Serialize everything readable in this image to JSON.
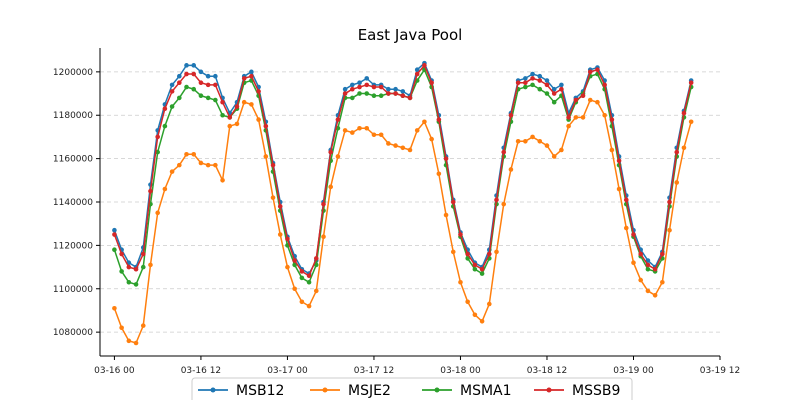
{
  "chart_data": {
    "type": "line",
    "title": "East Java Pool",
    "xlabel": "",
    "ylabel": "",
    "x_start": "03-16 00",
    "x_step_hours": 1,
    "x_ticks": [
      "03-16 00",
      "03-16 12",
      "03-17 00",
      "03-17 12",
      "03-18 00",
      "03-18 12",
      "03-19 00",
      "03-19 12"
    ],
    "xlim": [
      "03-15 22",
      "03-19 12"
    ],
    "ylim": [
      1069000,
      1211000
    ],
    "y_ticks": [
      1080000,
      1100000,
      1120000,
      1140000,
      1160000,
      1180000,
      1200000
    ],
    "grid": "y-dashed",
    "legend_position": "bottom-center",
    "series": [
      {
        "name": "MSB12",
        "color": "#1f77b4",
        "values": [
          1127000,
          1118000,
          1112000,
          1110000,
          1119000,
          1148000,
          1173000,
          1185000,
          1194000,
          1198000,
          1203000,
          1203000,
          1200000,
          1198000,
          1198000,
          1188000,
          1181000,
          1186000,
          1198000,
          1200000,
          1193000,
          1177000,
          1158000,
          1140000,
          1124000,
          1115000,
          1109000,
          1107000,
          1113000,
          1140000,
          1164000,
          1180000,
          1192000,
          1194000,
          1195000,
          1197000,
          1194000,
          1194000,
          1192000,
          1192000,
          1191000,
          1189000,
          1201000,
          1204000,
          1196000,
          1180000,
          1161000,
          1141000,
          1126000,
          1118000,
          1112000,
          1110000,
          1118000,
          1143000,
          1165000,
          1181000,
          1196000,
          1197000,
          1199000,
          1198000,
          1196000,
          1192000,
          1194000,
          1181000,
          1188000,
          1191000,
          1201000,
          1202000,
          1196000,
          1180000,
          1161000,
          1143000,
          1127000,
          1118000,
          1113000,
          1110000,
          1117000,
          1142000,
          1165000,
          1182000,
          1196000
        ]
      },
      {
        "name": "MSJE2",
        "color": "#ff7f0e",
        "values": [
          1091000,
          1082000,
          1076000,
          1075000,
          1083000,
          1111000,
          1135000,
          1146000,
          1154000,
          1157000,
          1162000,
          1162000,
          1158000,
          1157000,
          1157000,
          1150000,
          1175000,
          1176000,
          1186000,
          1185000,
          1178000,
          1161000,
          1142000,
          1125000,
          1110000,
          1100000,
          1094000,
          1092000,
          1099000,
          1124000,
          1147000,
          1161000,
          1173000,
          1172000,
          1174000,
          1174000,
          1171000,
          1171000,
          1167000,
          1166000,
          1165000,
          1164000,
          1173000,
          1177000,
          1169000,
          1153000,
          1134000,
          1117000,
          1103000,
          1094000,
          1088000,
          1085000,
          1093000,
          1117000,
          1139000,
          1155000,
          1168000,
          1168000,
          1170000,
          1168000,
          1166000,
          1161000,
          1164000,
          1175000,
          1179000,
          1179000,
          1187000,
          1186000,
          1180000,
          1164000,
          1146000,
          1128000,
          1112000,
          1104000,
          1099000,
          1097000,
          1103000,
          1127000,
          1149000,
          1165000,
          1177000
        ]
      },
      {
        "name": "MSMA1",
        "color": "#2ca02c",
        "values": [
          1118000,
          1108000,
          1103000,
          1102000,
          1110000,
          1139000,
          1163000,
          1175000,
          1184000,
          1188000,
          1193000,
          1192000,
          1189000,
          1188000,
          1187000,
          1180000,
          1179000,
          1183000,
          1195000,
          1196000,
          1189000,
          1173000,
          1154000,
          1136000,
          1120000,
          1111000,
          1105000,
          1103000,
          1111000,
          1136000,
          1159000,
          1174000,
          1188000,
          1188000,
          1190000,
          1190000,
          1189000,
          1189000,
          1190000,
          1190000,
          1189000,
          1188000,
          1196000,
          1201000,
          1193000,
          1177000,
          1157000,
          1138000,
          1124000,
          1114000,
          1109000,
          1107000,
          1114000,
          1139000,
          1161000,
          1177000,
          1192000,
          1193000,
          1194000,
          1192000,
          1190000,
          1186000,
          1189000,
          1178000,
          1186000,
          1190000,
          1198000,
          1199000,
          1192000,
          1175000,
          1157000,
          1139000,
          1124000,
          1115000,
          1109000,
          1108000,
          1114000,
          1138000,
          1161000,
          1179000,
          1193000
        ]
      },
      {
        "name": "MSSB9",
        "color": "#d62728",
        "values": [
          1125000,
          1116000,
          1110000,
          1109000,
          1116000,
          1145000,
          1170000,
          1183000,
          1191000,
          1195000,
          1199000,
          1199000,
          1195000,
          1194000,
          1194000,
          1186000,
          1179000,
          1184000,
          1197000,
          1198000,
          1191000,
          1175000,
          1157000,
          1138000,
          1123000,
          1113000,
          1108000,
          1106000,
          1114000,
          1139000,
          1163000,
          1178000,
          1190000,
          1192000,
          1193000,
          1194000,
          1193000,
          1193000,
          1190000,
          1190000,
          1189000,
          1188000,
          1199000,
          1203000,
          1195000,
          1178000,
          1160000,
          1140000,
          1125000,
          1116000,
          1111000,
          1109000,
          1116000,
          1141000,
          1163000,
          1180000,
          1195000,
          1195000,
          1197000,
          1196000,
          1194000,
          1190000,
          1192000,
          1179000,
          1187000,
          1189000,
          1200000,
          1201000,
          1194000,
          1178000,
          1159000,
          1141000,
          1125000,
          1116000,
          1111000,
          1109000,
          1116000,
          1140000,
          1163000,
          1181000,
          1195000
        ]
      }
    ]
  }
}
